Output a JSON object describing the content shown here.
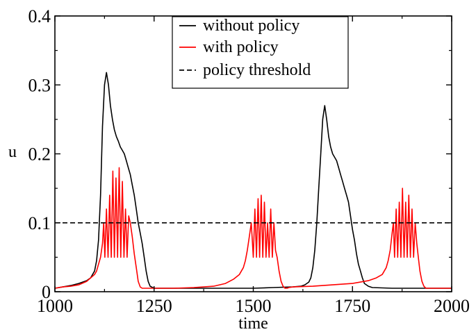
{
  "chart_data": {
    "type": "line",
    "title": "",
    "xlabel": "time",
    "ylabel": "u",
    "xlim": [
      1000,
      2000
    ],
    "ylim": [
      0,
      0.4
    ],
    "x_ticks": [
      1000,
      1250,
      1500,
      1750,
      2000
    ],
    "x_tick_labels": [
      "1000",
      "1250",
      "1500",
      "1750",
      "2000"
    ],
    "y_ticks": [
      0,
      0.1,
      0.2,
      0.3,
      0.4
    ],
    "y_tick_labels": [
      "0",
      "0.1",
      "0.2",
      "0.3",
      "0.4"
    ],
    "grid": false,
    "legend_position": "top-center",
    "series": [
      {
        "name": "without policy",
        "color": "#000000",
        "style": "solid",
        "x": [
          1000,
          1020,
          1040,
          1060,
          1080,
          1090,
          1100,
          1105,
          1110,
          1115,
          1120,
          1125,
          1130,
          1135,
          1140,
          1145,
          1150,
          1155,
          1160,
          1165,
          1170,
          1175,
          1180,
          1185,
          1190,
          1195,
          1200,
          1205,
          1210,
          1215,
          1220,
          1225,
          1230,
          1235,
          1240,
          1250,
          1270,
          1300,
          1350,
          1400,
          1450,
          1500,
          1550,
          1600,
          1620,
          1630,
          1640,
          1645,
          1650,
          1655,
          1660,
          1665,
          1670,
          1675,
          1680,
          1685,
          1690,
          1695,
          1700,
          1705,
          1710,
          1715,
          1720,
          1725,
          1730,
          1735,
          1740,
          1745,
          1750,
          1755,
          1760,
          1765,
          1770,
          1775,
          1780,
          1790,
          1800,
          1850,
          1900,
          1950,
          2000
        ],
        "values": [
          0.005,
          0.007,
          0.009,
          0.012,
          0.016,
          0.02,
          0.03,
          0.045,
          0.075,
          0.14,
          0.24,
          0.3,
          0.318,
          0.3,
          0.27,
          0.25,
          0.235,
          0.225,
          0.218,
          0.21,
          0.205,
          0.2,
          0.19,
          0.18,
          0.17,
          0.155,
          0.14,
          0.12,
          0.1,
          0.085,
          0.07,
          0.05,
          0.03,
          0.015,
          0.008,
          0.005,
          0.005,
          0.005,
          0.005,
          0.005,
          0.005,
          0.005,
          0.006,
          0.007,
          0.008,
          0.01,
          0.014,
          0.02,
          0.035,
          0.06,
          0.1,
          0.15,
          0.2,
          0.25,
          0.27,
          0.25,
          0.225,
          0.21,
          0.2,
          0.195,
          0.19,
          0.18,
          0.17,
          0.16,
          0.15,
          0.14,
          0.13,
          0.11,
          0.09,
          0.075,
          0.055,
          0.04,
          0.03,
          0.02,
          0.012,
          0.008,
          0.006,
          0.005,
          0.005,
          0.005,
          0.005
        ]
      },
      {
        "name": "with policy",
        "color": "#ff0000",
        "style": "solid",
        "x": [
          1000,
          1020,
          1040,
          1060,
          1080,
          1090,
          1100,
          1105,
          1110,
          1115,
          1120,
          1123,
          1126,
          1130,
          1134,
          1138,
          1142,
          1146,
          1150,
          1154,
          1158,
          1162,
          1166,
          1170,
          1174,
          1178,
          1182,
          1186,
          1190,
          1195,
          1200,
          1205,
          1210,
          1215,
          1220,
          1225,
          1230,
          1240,
          1260,
          1300,
          1350,
          1400,
          1430,
          1450,
          1465,
          1475,
          1480,
          1485,
          1490,
          1495,
          1500,
          1504,
          1508,
          1512,
          1516,
          1520,
          1524,
          1528,
          1532,
          1536,
          1540,
          1544,
          1548,
          1552,
          1556,
          1560,
          1565,
          1570,
          1575,
          1580,
          1585,
          1590,
          1600,
          1650,
          1700,
          1750,
          1790,
          1810,
          1825,
          1835,
          1840,
          1845,
          1850,
          1853,
          1856,
          1860,
          1864,
          1868,
          1872,
          1876,
          1880,
          1884,
          1888,
          1892,
          1896,
          1900,
          1904,
          1908,
          1912,
          1916,
          1920,
          1925,
          1930,
          1935,
          1940,
          1945,
          1950,
          2000
        ],
        "values": [
          0.005,
          0.007,
          0.008,
          0.01,
          0.015,
          0.02,
          0.025,
          0.03,
          0.04,
          0.05,
          0.07,
          0.1,
          0.05,
          0.12,
          0.05,
          0.14,
          0.05,
          0.175,
          0.05,
          0.165,
          0.05,
          0.18,
          0.05,
          0.16,
          0.05,
          0.12,
          0.05,
          0.11,
          0.1,
          0.08,
          0.055,
          0.035,
          0.015,
          0.007,
          0.005,
          0.005,
          0.005,
          0.005,
          0.005,
          0.005,
          0.006,
          0.008,
          0.012,
          0.018,
          0.025,
          0.035,
          0.045,
          0.06,
          0.08,
          0.1,
          0.05,
          0.12,
          0.05,
          0.135,
          0.05,
          0.14,
          0.05,
          0.13,
          0.05,
          0.1,
          0.05,
          0.12,
          0.05,
          0.1,
          0.06,
          0.05,
          0.03,
          0.015,
          0.008,
          0.005,
          0.005,
          0.006,
          0.007,
          0.008,
          0.01,
          0.012,
          0.016,
          0.02,
          0.025,
          0.035,
          0.045,
          0.06,
          0.085,
          0.1,
          0.05,
          0.12,
          0.05,
          0.13,
          0.05,
          0.15,
          0.05,
          0.13,
          0.05,
          0.14,
          0.05,
          0.12,
          0.05,
          0.1,
          0.07,
          0.05,
          0.03,
          0.015,
          0.008,
          0.005,
          0.005,
          0.005,
          0.005,
          0.005
        ]
      },
      {
        "name": "policy threshold",
        "color": "#000000",
        "style": "dashed",
        "x": [
          1000,
          2000
        ],
        "values": [
          0.1,
          0.1
        ]
      }
    ]
  }
}
